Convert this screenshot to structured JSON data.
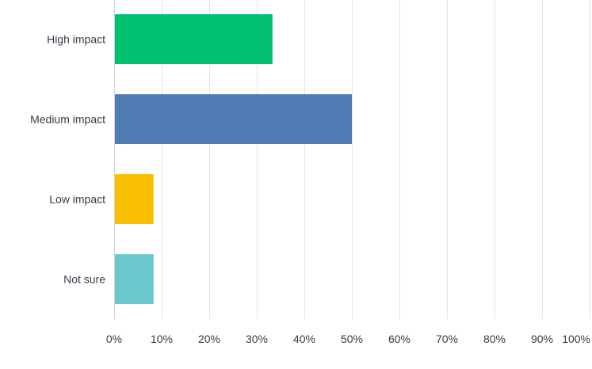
{
  "chart_data": {
    "type": "bar",
    "orientation": "horizontal",
    "categories": [
      "High impact",
      "Medium impact",
      "Low impact",
      "Not sure"
    ],
    "values": [
      33.3,
      50,
      8.3,
      8.3
    ],
    "colors": [
      "#00bf6f",
      "#507cb6",
      "#f9be00",
      "#6bc8cd"
    ],
    "xlim": [
      0,
      100
    ],
    "x_ticks": [
      0,
      10,
      20,
      30,
      40,
      50,
      60,
      70,
      80,
      90,
      100
    ],
    "x_tick_labels": [
      "0%",
      "10%",
      "20%",
      "30%",
      "40%",
      "50%",
      "60%",
      "70%",
      "80%",
      "90%",
      "100%"
    ],
    "grid": true,
    "title": "",
    "xlabel": "",
    "ylabel": ""
  }
}
